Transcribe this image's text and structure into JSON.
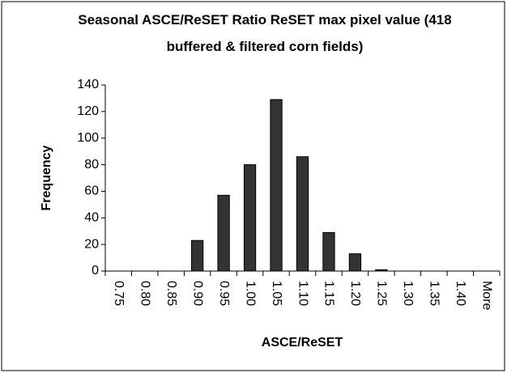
{
  "chart_data": {
    "type": "bar",
    "title": "Seasonal ASCE/ReSET Ratio ReSET max pixel value (418 buffered & filtered corn fields)",
    "x_label": "ASCE/ReSET",
    "y_label": "Frequency",
    "categories": [
      "0.75",
      "0.80",
      "0.85",
      "0.90",
      "0.95",
      "1.00",
      "1.05",
      "1.10",
      "1.15",
      "1.20",
      "1.25",
      "1.30",
      "1.35",
      "1.40",
      "More"
    ],
    "values": [
      0,
      0,
      0,
      23,
      57,
      80,
      129,
      86,
      29,
      13,
      1,
      0,
      0,
      0,
      0
    ],
    "color": "#333333",
    "ylim": [
      0,
      140
    ],
    "yticks": [
      0,
      20,
      40,
      60,
      80,
      100,
      120,
      140
    ],
    "grid": false
  }
}
